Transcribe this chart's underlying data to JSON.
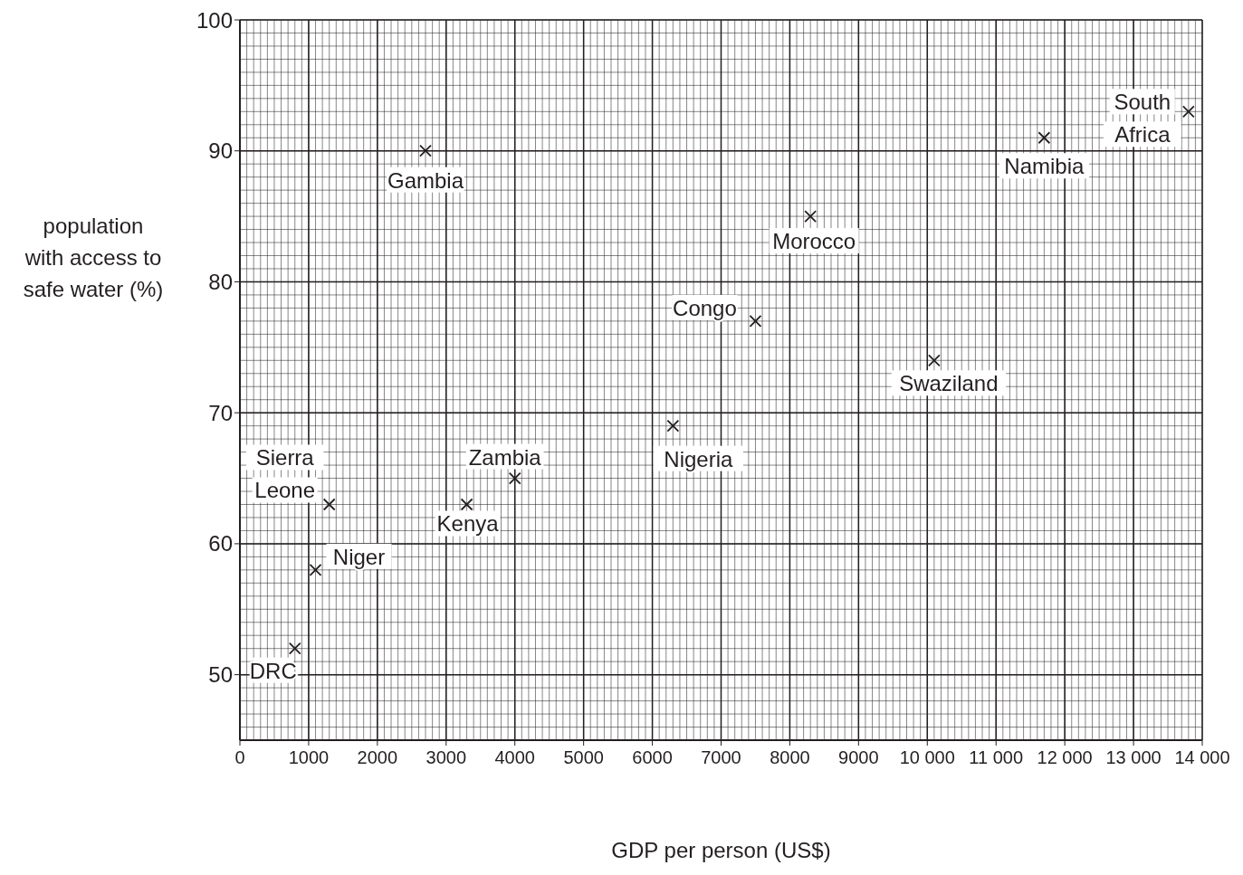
{
  "chart_data": {
    "type": "scatter",
    "xlabel": "GDP per person (US$)",
    "ylabel": "population with access to safe water (%)",
    "x": [
      2700,
      11700,
      13800,
      8300,
      7500,
      10100,
      6300,
      4000,
      3300,
      1300,
      1100,
      800
    ],
    "values": [
      90,
      91,
      93,
      85,
      77,
      74,
      69,
      65,
      63,
      63,
      58,
      52
    ],
    "color": "#231f20",
    "marker": "cross",
    "grid": true,
    "xlim": [
      0,
      14000
    ],
    "ylim": [
      45,
      100
    ],
    "xticks": [
      0,
      1000,
      2000,
      3000,
      4000,
      5000,
      6000,
      7000,
      8000,
      9000,
      {
        "value": 10000,
        "label": "10 000"
      },
      {
        "value": 11000,
        "label": "11 000"
      },
      {
        "value": 12000,
        "label": "12 000"
      },
      {
        "value": 13000,
        "label": "13 000"
      },
      {
        "value": 14000,
        "label": "14 000"
      }
    ],
    "yticks": [
      50,
      60,
      70,
      80,
      90,
      100
    ],
    "annotations": [
      {
        "text": "Gambia",
        "x": 2700,
        "y": 90
      },
      {
        "text": "Namibia",
        "x": 11700,
        "y": 91
      },
      {
        "text": "South Africa",
        "x": 13800,
        "y": 93
      },
      {
        "text": "Morocco",
        "x": 8300,
        "y": 85
      },
      {
        "text": "Congo",
        "x": 7500,
        "y": 77
      },
      {
        "text": "Swaziland",
        "x": 10100,
        "y": 74
      },
      {
        "text": "Nigeria",
        "x": 6300,
        "y": 69
      },
      {
        "text": "Zambia",
        "x": 4000,
        "y": 65
      },
      {
        "text": "Kenya",
        "x": 3300,
        "y": 63
      },
      {
        "text": "Sierra Leone",
        "x": 1300,
        "y": 63
      },
      {
        "text": "Niger",
        "x": 1100,
        "y": 58
      },
      {
        "text": "DRC",
        "x": 800,
        "y": 52
      }
    ]
  }
}
